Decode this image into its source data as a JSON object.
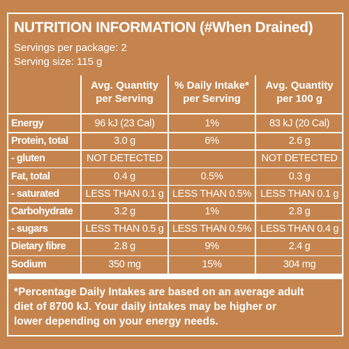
{
  "header": {
    "title": "NUTRITION INFORMATION (#When Drained)",
    "servings_per_package": "Servings per package: 2",
    "serving_size": "Serving size: 115 g"
  },
  "table": {
    "columns": [
      [
        "Avg. Quantity",
        "per Serving"
      ],
      [
        "% Daily Intake*",
        "per Serving"
      ],
      [
        "Avg. Quantity",
        "per 100 g"
      ]
    ],
    "rows": [
      {
        "label": "Energy",
        "values": [
          "96 kJ (23 Cal)",
          "1%",
          "83 kJ (20 Cal)"
        ]
      },
      {
        "label": "Protein, total",
        "values": [
          "3.0 g",
          "6%",
          "2.6 g"
        ]
      },
      {
        "label": "- gluten",
        "values": [
          "NOT DETECTED",
          null,
          "NOT DETECTED"
        ]
      },
      {
        "label": "Fat, total",
        "values": [
          "0.4 g",
          "0.5%",
          "0.3 g"
        ]
      },
      {
        "label": "- saturated",
        "values": [
          "LESS THAN 0.1 g",
          "LESS THAN 0.5%",
          "LESS THAN 0.1 g"
        ]
      },
      {
        "label": "Carbohydrate",
        "values": [
          "3.2 g",
          "1%",
          "2.8 g"
        ]
      },
      {
        "label": "- sugars",
        "values": [
          "LESS THAN 0.5 g",
          "LESS THAN 0.5%",
          "LESS THAN 0.4 g"
        ]
      },
      {
        "label": "Dietary fibre",
        "values": [
          "2.8 g",
          "9%",
          "2.4 g"
        ]
      },
      {
        "label": "Sodium",
        "values": [
          "350 mg",
          "15%",
          "304 mg"
        ]
      }
    ]
  },
  "footnote": [
    "*Percentage Daily Intakes are based on an average adult",
    "diet of 8700 kJ. Your daily intakes may be higher or",
    "lower depending on your energy needs."
  ]
}
